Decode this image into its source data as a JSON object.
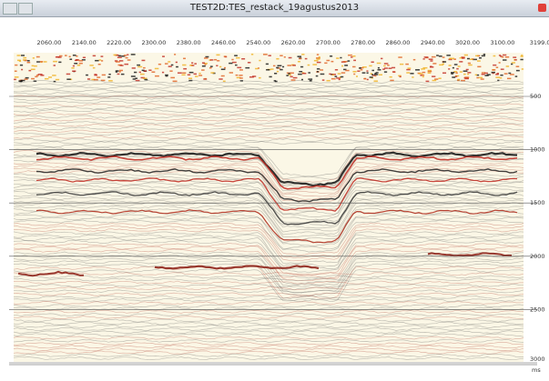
{
  "window": {
    "title": "TEST2D:TES_restack_19agustus2013"
  },
  "section": {
    "top_axis": [
      "2060.00",
      "2140.00",
      "2220.00",
      "2300.00",
      "2380.00",
      "2460.00",
      "2540.00",
      "2620.00",
      "2700.00",
      "2780.00",
      "2860.00",
      "2940.00",
      "3020.00",
      "3100.00",
      "3199.00"
    ],
    "right_axis": [
      "500",
      "1000",
      "1500",
      "2000",
      "2500",
      "3000"
    ],
    "right_unit": "ms"
  }
}
